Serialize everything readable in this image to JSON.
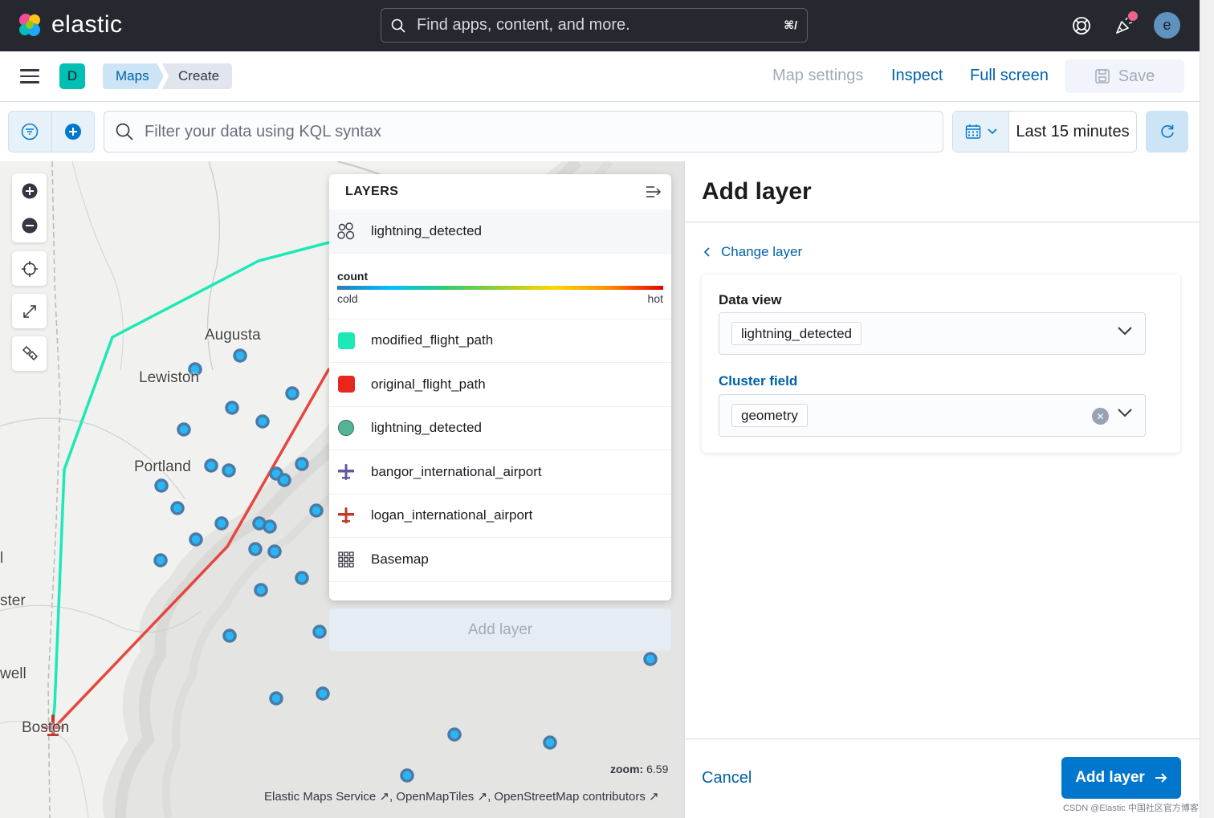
{
  "header": {
    "brand": "elastic",
    "search_placeholder": "Find apps, content, and more.",
    "search_shortcut": "⌘/",
    "avatar_initial": "e",
    "icons": [
      "elastic-logo-icon",
      "search-icon",
      "help-icon",
      "news-icon"
    ]
  },
  "subbar": {
    "space_initial": "D",
    "space_color": "#00bfb3",
    "breadcrumbs": [
      "Maps",
      "Create"
    ],
    "map_settings": "Map settings",
    "inspect": "Inspect",
    "full_screen": "Full screen",
    "save": "Save"
  },
  "query": {
    "kql_placeholder": "Filter your data using KQL syntax",
    "time_range": "Last 15 minutes"
  },
  "map": {
    "cities": [
      "Augusta",
      "Lewiston",
      "Portland",
      "Boston",
      "ster",
      "well",
      "l"
    ],
    "zoom_label": "zoom:",
    "zoom_value": "6.59",
    "attribution": [
      "Elastic Maps Service",
      "OpenMapTiles",
      "OpenStreetMap contributors"
    ]
  },
  "layers_panel": {
    "title": "LAYERS",
    "legend": {
      "field": "count",
      "low": "cold",
      "high": "hot"
    },
    "items": [
      {
        "label": "lightning_detected",
        "icon": "cluster-icon"
      },
      {
        "label": "modified_flight_path",
        "color": "#1de9b6"
      },
      {
        "label": "original_flight_path",
        "color": "#e7261d"
      },
      {
        "label": "lightning_detected",
        "color": "#54b399"
      },
      {
        "label": "bangor_international_airport",
        "icon": "airplane-icon",
        "color": "#6059a6"
      },
      {
        "label": "logan_international_airport",
        "icon": "airplane-icon",
        "color": "#c0392b"
      },
      {
        "label": "Basemap",
        "icon": "grid-icon"
      }
    ],
    "add_layer": "Add layer"
  },
  "flyout": {
    "title": "Add layer",
    "change_layer": "Change layer",
    "data_view_label": "Data view",
    "data_view_value": "lightning_detected",
    "cluster_field_label": "Cluster field",
    "cluster_field_value": "geometry",
    "cancel": "Cancel",
    "add_layer": "Add layer"
  },
  "watermark": "CSDN @Elastic 中国社区官方博客"
}
